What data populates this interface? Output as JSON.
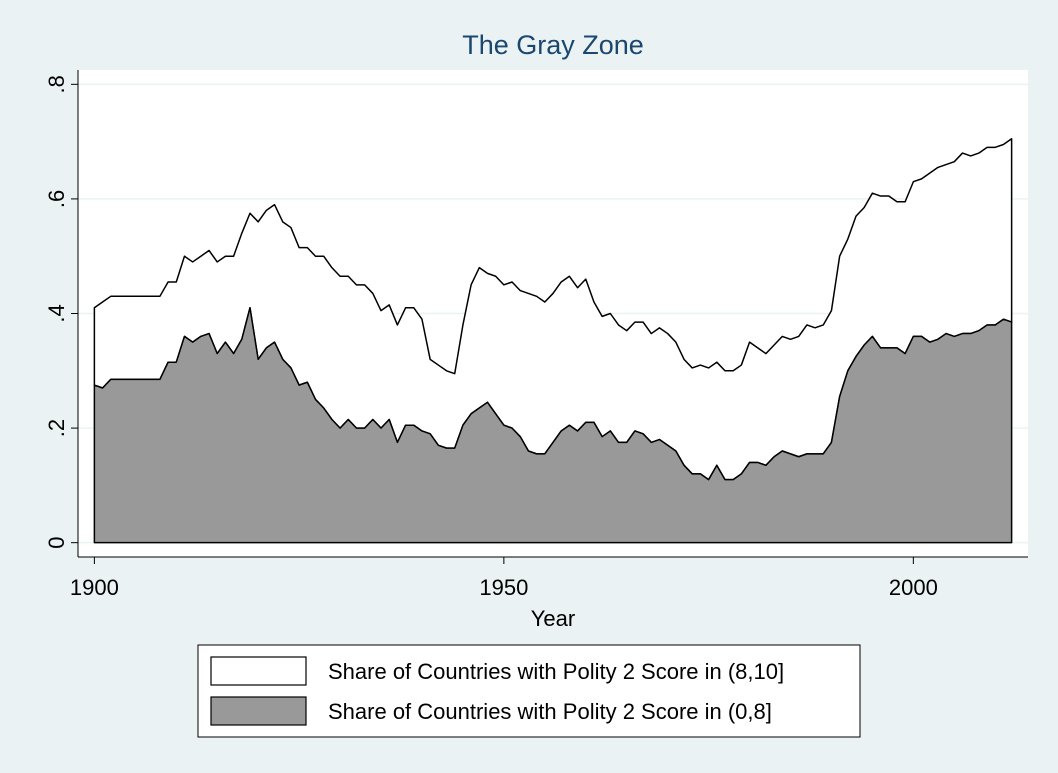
{
  "chart_data": {
    "type": "stacked-area",
    "title": "The Gray Zone",
    "x_label": "Year",
    "x": [
      1900,
      1901,
      1902,
      1903,
      1904,
      1905,
      1906,
      1907,
      1908,
      1909,
      1910,
      1911,
      1912,
      1913,
      1914,
      1915,
      1916,
      1917,
      1918,
      1919,
      1920,
      1921,
      1922,
      1923,
      1924,
      1925,
      1926,
      1927,
      1928,
      1929,
      1930,
      1931,
      1932,
      1933,
      1934,
      1935,
      1936,
      1937,
      1938,
      1939,
      1940,
      1941,
      1942,
      1943,
      1944,
      1945,
      1946,
      1947,
      1948,
      1949,
      1950,
      1951,
      1952,
      1953,
      1954,
      1955,
      1956,
      1957,
      1958,
      1959,
      1960,
      1961,
      1962,
      1963,
      1964,
      1965,
      1966,
      1967,
      1968,
      1969,
      1970,
      1971,
      1972,
      1973,
      1974,
      1975,
      1976,
      1977,
      1978,
      1979,
      1980,
      1981,
      1982,
      1983,
      1984,
      1985,
      1986,
      1987,
      1988,
      1989,
      1990,
      1991,
      1992,
      1993,
      1994,
      1995,
      1996,
      1997,
      1998,
      1999,
      2000,
      2001,
      2002,
      2003,
      2004,
      2005,
      2006,
      2007,
      2008,
      2009,
      2010,
      2011,
      2012
    ],
    "series": [
      {
        "name": "Share of Countries with Polity 2 Score in (0,8]",
        "color": "#999999",
        "values": [
          0.275,
          0.27,
          0.285,
          0.285,
          0.285,
          0.285,
          0.285,
          0.285,
          0.285,
          0.315,
          0.315,
          0.36,
          0.35,
          0.36,
          0.365,
          0.33,
          0.35,
          0.33,
          0.355,
          0.41,
          0.32,
          0.34,
          0.35,
          0.32,
          0.305,
          0.275,
          0.28,
          0.25,
          0.235,
          0.215,
          0.2,
          0.215,
          0.2,
          0.2,
          0.215,
          0.2,
          0.215,
          0.175,
          0.205,
          0.205,
          0.195,
          0.19,
          0.17,
          0.165,
          0.165,
          0.205,
          0.225,
          0.235,
          0.245,
          0.225,
          0.205,
          0.2,
          0.185,
          0.16,
          0.155,
          0.155,
          0.175,
          0.195,
          0.205,
          0.195,
          0.21,
          0.21,
          0.185,
          0.195,
          0.175,
          0.175,
          0.195,
          0.19,
          0.175,
          0.18,
          0.17,
          0.16,
          0.135,
          0.12,
          0.12,
          0.11,
          0.135,
          0.11,
          0.11,
          0.12,
          0.14,
          0.14,
          0.135,
          0.15,
          0.16,
          0.155,
          0.15,
          0.155,
          0.155,
          0.155,
          0.175,
          0.255,
          0.3,
          0.325,
          0.345,
          0.36,
          0.34,
          0.34,
          0.34,
          0.33,
          0.36,
          0.36,
          0.35,
          0.355,
          0.365,
          0.36,
          0.365,
          0.365,
          0.37,
          0.38,
          0.38,
          0.39,
          0.385
        ]
      },
      {
        "name": "Share of Countries with Polity 2 Score in (8,10]",
        "color": "#ffffff",
        "values": [
          0.135,
          0.15,
          0.145,
          0.145,
          0.145,
          0.145,
          0.145,
          0.145,
          0.145,
          0.14,
          0.14,
          0.14,
          0.14,
          0.14,
          0.145,
          0.16,
          0.15,
          0.17,
          0.185,
          0.165,
          0.24,
          0.24,
          0.24,
          0.24,
          0.245,
          0.24,
          0.235,
          0.25,
          0.265,
          0.265,
          0.265,
          0.25,
          0.25,
          0.25,
          0.22,
          0.205,
          0.2,
          0.205,
          0.205,
          0.205,
          0.195,
          0.13,
          0.14,
          0.135,
          0.13,
          0.175,
          0.225,
          0.245,
          0.225,
          0.24,
          0.245,
          0.255,
          0.255,
          0.275,
          0.275,
          0.265,
          0.26,
          0.26,
          0.26,
          0.25,
          0.25,
          0.21,
          0.21,
          0.205,
          0.205,
          0.195,
          0.19,
          0.195,
          0.19,
          0.195,
          0.195,
          0.19,
          0.185,
          0.185,
          0.19,
          0.195,
          0.18,
          0.19,
          0.19,
          0.19,
          0.21,
          0.2,
          0.195,
          0.195,
          0.2,
          0.2,
          0.21,
          0.225,
          0.22,
          0.225,
          0.23,
          0.245,
          0.23,
          0.245,
          0.24,
          0.25,
          0.265,
          0.265,
          0.255,
          0.265,
          0.27,
          0.275,
          0.295,
          0.3,
          0.295,
          0.305,
          0.315,
          0.31,
          0.31,
          0.31,
          0.31,
          0.305,
          0.32
        ]
      }
    ],
    "legend_order": [
      1,
      0
    ],
    "xlim": [
      1898,
      2014
    ],
    "xticks": [
      1900,
      1950,
      2000
    ],
    "ylim": [
      -0.025,
      0.825
    ],
    "yticks": [
      {
        "value": 0,
        "label": "0"
      },
      {
        "value": 0.2,
        "label": ".2"
      },
      {
        "value": 0.4,
        "label": ".4"
      },
      {
        "value": 0.6,
        "label": ".6"
      },
      {
        "value": 0.8,
        "label": ".8"
      }
    ],
    "grid": true
  }
}
